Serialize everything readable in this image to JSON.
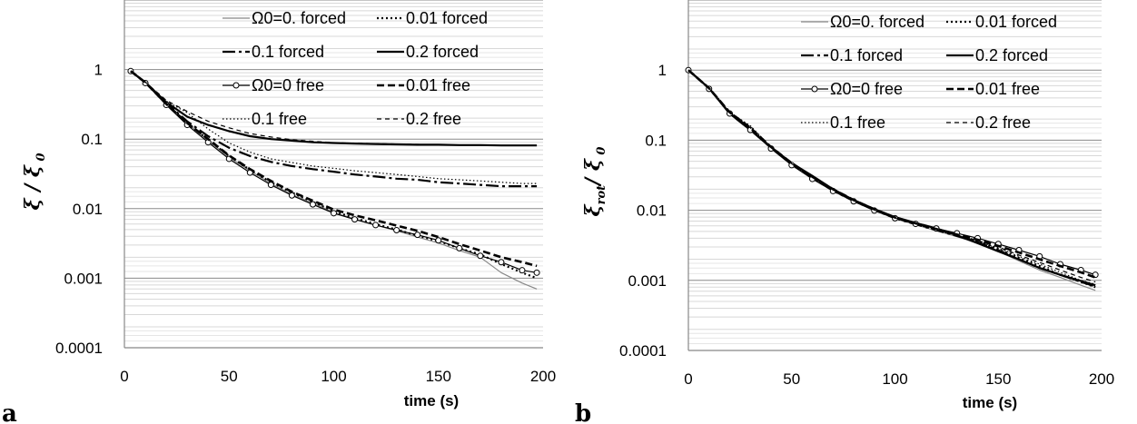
{
  "chart_data": [
    {
      "type": "line",
      "panel_label": "a",
      "xlabel": "time (s)",
      "ylabel_main": "ξ",
      "ylabel_sub": "",
      "ylabel_sep": " / ",
      "ylabel_den": "ξ",
      "ylabel_den_sub": "0",
      "yscale": "log",
      "xlim": [
        0,
        200
      ],
      "ylim": [
        0.0001,
        10
      ],
      "xticks": [
        "0",
        "50",
        "100",
        "150",
        "200"
      ],
      "yticks": [
        "0.0001",
        "0.001",
        "0.01",
        "0.1",
        "1"
      ],
      "grid": true,
      "legend_position": "top-right",
      "series": [
        {
          "name": "Ω0=0. forced",
          "color": "#888888",
          "style": "solid-thin",
          "x": [
            3,
            10,
            20,
            30,
            40,
            50,
            60,
            70,
            80,
            90,
            100,
            110,
            120,
            130,
            140,
            150,
            160,
            170,
            180,
            190,
            197
          ],
          "y": [
            0.95,
            0.65,
            0.32,
            0.17,
            0.095,
            0.055,
            0.035,
            0.023,
            0.016,
            0.012,
            0.0088,
            0.0071,
            0.0058,
            0.0048,
            0.0039,
            0.0032,
            0.0025,
            0.002,
            0.0012,
            0.00085,
            0.0007
          ]
        },
        {
          "name": "0.01 forced",
          "color": "#000000",
          "style": "dotted",
          "x": [
            3,
            10,
            20,
            30,
            40,
            50,
            60,
            70,
            80,
            90,
            100,
            110,
            120,
            130,
            140,
            150,
            160,
            170,
            180,
            190,
            197
          ],
          "y": [
            0.95,
            0.65,
            0.32,
            0.17,
            0.098,
            0.057,
            0.036,
            0.024,
            0.017,
            0.0125,
            0.0092,
            0.0073,
            0.006,
            0.005,
            0.0041,
            0.0034,
            0.0027,
            0.0022,
            0.0016,
            0.0012,
            0.001
          ]
        },
        {
          "name": "0.1 forced",
          "color": "#000000",
          "style": "dashdot",
          "x": [
            3,
            10,
            20,
            30,
            40,
            50,
            60,
            70,
            80,
            90,
            100,
            110,
            120,
            130,
            140,
            150,
            160,
            170,
            180,
            190,
            197
          ],
          "y": [
            0.95,
            0.65,
            0.33,
            0.18,
            0.11,
            0.075,
            0.057,
            0.047,
            0.041,
            0.037,
            0.034,
            0.031,
            0.029,
            0.027,
            0.026,
            0.024,
            0.023,
            0.022,
            0.021,
            0.021,
            0.021
          ]
        },
        {
          "name": "0.2 forced",
          "color": "#000000",
          "style": "solid",
          "x": [
            3,
            10,
            20,
            30,
            40,
            50,
            60,
            70,
            80,
            90,
            100,
            110,
            120,
            130,
            140,
            150,
            160,
            170,
            180,
            190,
            197
          ],
          "y": [
            0.95,
            0.65,
            0.34,
            0.21,
            0.16,
            0.13,
            0.11,
            0.1,
            0.095,
            0.09,
            0.088,
            0.086,
            0.085,
            0.084,
            0.083,
            0.083,
            0.082,
            0.082,
            0.081,
            0.081,
            0.081
          ]
        },
        {
          "name": "Ω0=0 free",
          "color": "#000000",
          "style": "circles",
          "x": [
            3,
            10,
            20,
            30,
            40,
            50,
            60,
            70,
            80,
            90,
            100,
            110,
            120,
            130,
            140,
            150,
            160,
            170,
            180,
            190,
            197
          ],
          "y": [
            0.95,
            0.64,
            0.31,
            0.16,
            0.09,
            0.052,
            0.033,
            0.022,
            0.0155,
            0.0115,
            0.0086,
            0.007,
            0.0058,
            0.0049,
            0.0042,
            0.0035,
            0.0027,
            0.0021,
            0.0017,
            0.0013,
            0.0012
          ]
        },
        {
          "name": "0.01 free",
          "color": "#000000",
          "style": "dashed-bold",
          "x": [
            3,
            10,
            20,
            30,
            40,
            50,
            60,
            70,
            80,
            90,
            100,
            110,
            120,
            130,
            140,
            150,
            160,
            170,
            180,
            190,
            197
          ],
          "y": [
            0.95,
            0.65,
            0.32,
            0.17,
            0.1,
            0.058,
            0.037,
            0.025,
            0.0175,
            0.013,
            0.0097,
            0.008,
            0.0068,
            0.0057,
            0.0048,
            0.0039,
            0.0031,
            0.0025,
            0.002,
            0.0017,
            0.0015
          ]
        },
        {
          "name": "0.1 free",
          "color": "#000000",
          "style": "dotted-thin",
          "x": [
            3,
            10,
            20,
            30,
            40,
            50,
            60,
            70,
            80,
            90,
            100,
            110,
            120,
            130,
            140,
            150,
            160,
            170,
            180,
            190,
            197
          ],
          "y": [
            0.95,
            0.66,
            0.35,
            0.24,
            0.14,
            0.088,
            0.065,
            0.052,
            0.046,
            0.041,
            0.038,
            0.035,
            0.033,
            0.031,
            0.029,
            0.027,
            0.026,
            0.025,
            0.024,
            0.023,
            0.023
          ]
        },
        {
          "name": "0.2 free",
          "color": "#000000",
          "style": "dashed-thin",
          "x": [
            3,
            10,
            20,
            30,
            40,
            50,
            60,
            70,
            80,
            90,
            100,
            110,
            120,
            130,
            140,
            150,
            160,
            170,
            180,
            190,
            197
          ],
          "y": [
            0.95,
            0.66,
            0.36,
            0.25,
            0.18,
            0.145,
            0.12,
            0.107,
            0.098,
            0.093,
            0.089,
            0.087,
            0.086,
            0.085,
            0.084,
            0.083,
            0.082,
            0.082,
            0.081,
            0.081,
            0.081
          ]
        }
      ]
    },
    {
      "type": "line",
      "panel_label": "b",
      "xlabel": "time (s)",
      "ylabel_main": "ξ",
      "ylabel_sub": "rot",
      "ylabel_sep": "/ ",
      "ylabel_den": "ξ",
      "ylabel_den_sub": "0",
      "yscale": "log",
      "xlim": [
        0,
        200
      ],
      "ylim": [
        0.0001,
        10
      ],
      "xticks": [
        "0",
        "50",
        "100",
        "150",
        "200"
      ],
      "yticks": [
        "0.0001",
        "0.001",
        "0.01",
        "0.1",
        "1"
      ],
      "grid": true,
      "legend_position": "top-right",
      "series": [
        {
          "name": "Ω0=0. forced",
          "color": "#888888",
          "style": "solid-thin",
          "x": [
            0,
            10,
            20,
            30,
            40,
            50,
            60,
            70,
            80,
            90,
            100,
            110,
            120,
            130,
            140,
            150,
            160,
            170,
            180,
            190,
            197
          ],
          "y": [
            1.0,
            0.55,
            0.24,
            0.14,
            0.077,
            0.045,
            0.029,
            0.019,
            0.0135,
            0.01,
            0.0076,
            0.0062,
            0.0051,
            0.0042,
            0.0034,
            0.0026,
            0.0019,
            0.0014,
            0.0011,
            0.00085,
            0.00072
          ]
        },
        {
          "name": "0.01 forced",
          "color": "#000000",
          "style": "dotted",
          "x": [
            0,
            10,
            20,
            30,
            40,
            50,
            60,
            70,
            80,
            90,
            100,
            110,
            120,
            130,
            140,
            150,
            160,
            170,
            180,
            190,
            197
          ],
          "y": [
            1.0,
            0.55,
            0.25,
            0.15,
            0.079,
            0.046,
            0.03,
            0.0195,
            0.0138,
            0.0102,
            0.0078,
            0.0064,
            0.0053,
            0.0044,
            0.0036,
            0.0028,
            0.0021,
            0.0016,
            0.0012,
            0.00095,
            0.0008
          ]
        },
        {
          "name": "0.1 forced",
          "color": "#000000",
          "style": "dashdot",
          "x": [
            0,
            10,
            20,
            30,
            40,
            50,
            60,
            70,
            80,
            90,
            100,
            110,
            120,
            130,
            140,
            150,
            160,
            170,
            180,
            190,
            197
          ],
          "y": [
            1.0,
            0.55,
            0.24,
            0.14,
            0.078,
            0.045,
            0.029,
            0.019,
            0.0136,
            0.0101,
            0.0077,
            0.0063,
            0.0052,
            0.0043,
            0.0035,
            0.0027,
            0.002,
            0.0015,
            0.0012,
            0.00095,
            0.00082
          ]
        },
        {
          "name": "0.2 forced",
          "color": "#000000",
          "style": "solid",
          "x": [
            0,
            10,
            20,
            30,
            40,
            50,
            60,
            70,
            80,
            90,
            100,
            110,
            120,
            130,
            140,
            150,
            160,
            170,
            180,
            190,
            197
          ],
          "y": [
            1.0,
            0.55,
            0.24,
            0.14,
            0.08,
            0.047,
            0.031,
            0.02,
            0.014,
            0.0104,
            0.008,
            0.0066,
            0.0055,
            0.0044,
            0.0034,
            0.0026,
            0.002,
            0.0015,
            0.0012,
            0.00098,
            0.00085
          ]
        },
        {
          "name": "Ω0=0 free",
          "color": "#000000",
          "style": "circles",
          "x": [
            0,
            10,
            20,
            30,
            40,
            50,
            60,
            70,
            80,
            90,
            100,
            110,
            120,
            130,
            140,
            150,
            160,
            170,
            180,
            190,
            197
          ],
          "y": [
            1.0,
            0.54,
            0.24,
            0.14,
            0.076,
            0.044,
            0.028,
            0.0188,
            0.0134,
            0.0099,
            0.0077,
            0.0064,
            0.0055,
            0.0047,
            0.004,
            0.0033,
            0.0027,
            0.0022,
            0.0017,
            0.0014,
            0.0012
          ]
        },
        {
          "name": "0.01 free",
          "color": "#000000",
          "style": "dashed-bold",
          "x": [
            0,
            10,
            20,
            30,
            40,
            50,
            60,
            70,
            80,
            90,
            100,
            110,
            120,
            130,
            140,
            150,
            160,
            170,
            180,
            190,
            197
          ],
          "y": [
            1.0,
            0.55,
            0.25,
            0.15,
            0.08,
            0.047,
            0.03,
            0.02,
            0.014,
            0.0103,
            0.0079,
            0.0065,
            0.0054,
            0.0045,
            0.0038,
            0.0031,
            0.0025,
            0.002,
            0.0016,
            0.0013,
            0.0011
          ]
        },
        {
          "name": "0.1 free",
          "color": "#000000",
          "style": "dotted-thin",
          "x": [
            0,
            10,
            20,
            30,
            40,
            50,
            60,
            70,
            80,
            90,
            100,
            110,
            120,
            130,
            140,
            150,
            160,
            170,
            180,
            190,
            197
          ],
          "y": [
            1.0,
            0.55,
            0.25,
            0.16,
            0.08,
            0.046,
            0.03,
            0.0195,
            0.0138,
            0.0101,
            0.0078,
            0.0064,
            0.0053,
            0.0044,
            0.0036,
            0.0029,
            0.0022,
            0.0017,
            0.0013,
            0.001,
            0.00088
          ]
        },
        {
          "name": "0.2 free",
          "color": "#000000",
          "style": "dashed-thin",
          "x": [
            0,
            10,
            20,
            30,
            40,
            50,
            60,
            70,
            80,
            90,
            100,
            110,
            120,
            130,
            140,
            150,
            160,
            170,
            180,
            190,
            197
          ],
          "y": [
            1.0,
            0.55,
            0.25,
            0.15,
            0.079,
            0.046,
            0.03,
            0.0196,
            0.0139,
            0.0103,
            0.0079,
            0.0065,
            0.0054,
            0.0045,
            0.0037,
            0.003,
            0.0023,
            0.0018,
            0.0014,
            0.0011,
            0.00095
          ]
        }
      ]
    }
  ]
}
